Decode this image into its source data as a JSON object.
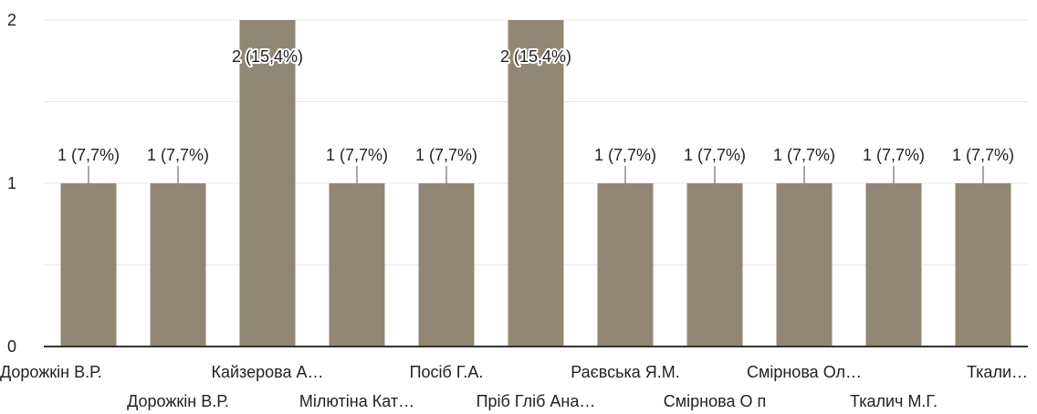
{
  "chart_data": {
    "type": "bar",
    "categories": [
      "Дорожкін В.Р.",
      "Дорожкін В.Р.",
      "Кайзерова А…",
      "Мілютіна Кат…",
      "Посіб Г.А.",
      "Пріб Гліб Ана…",
      "Раєвська Я.М.",
      "Смірнова О п",
      "Смірнова Ол…",
      "Ткалич М.Г.",
      "Ткали…"
    ],
    "values": [
      1,
      1,
      2,
      1,
      1,
      2,
      1,
      1,
      1,
      1,
      1
    ],
    "data_labels": [
      "1 (7,7%)",
      "1 (7,7%)",
      "2 (15,4%)",
      "1 (7,7%)",
      "1 (7,7%)",
      "2 (15,4%)",
      "1 (7,7%)",
      "1 (7,7%)",
      "1 (7,7%)",
      "1 (7,7%)",
      "1 (7,7%)"
    ],
    "y_ticks": [
      "0",
      "1",
      "2"
    ],
    "ylim": [
      0,
      2
    ],
    "grid": true,
    "colors": {
      "bar": "#918774",
      "grid": "#e6e6e6",
      "axis": "#333333",
      "leader": "#8a8a8a"
    }
  }
}
